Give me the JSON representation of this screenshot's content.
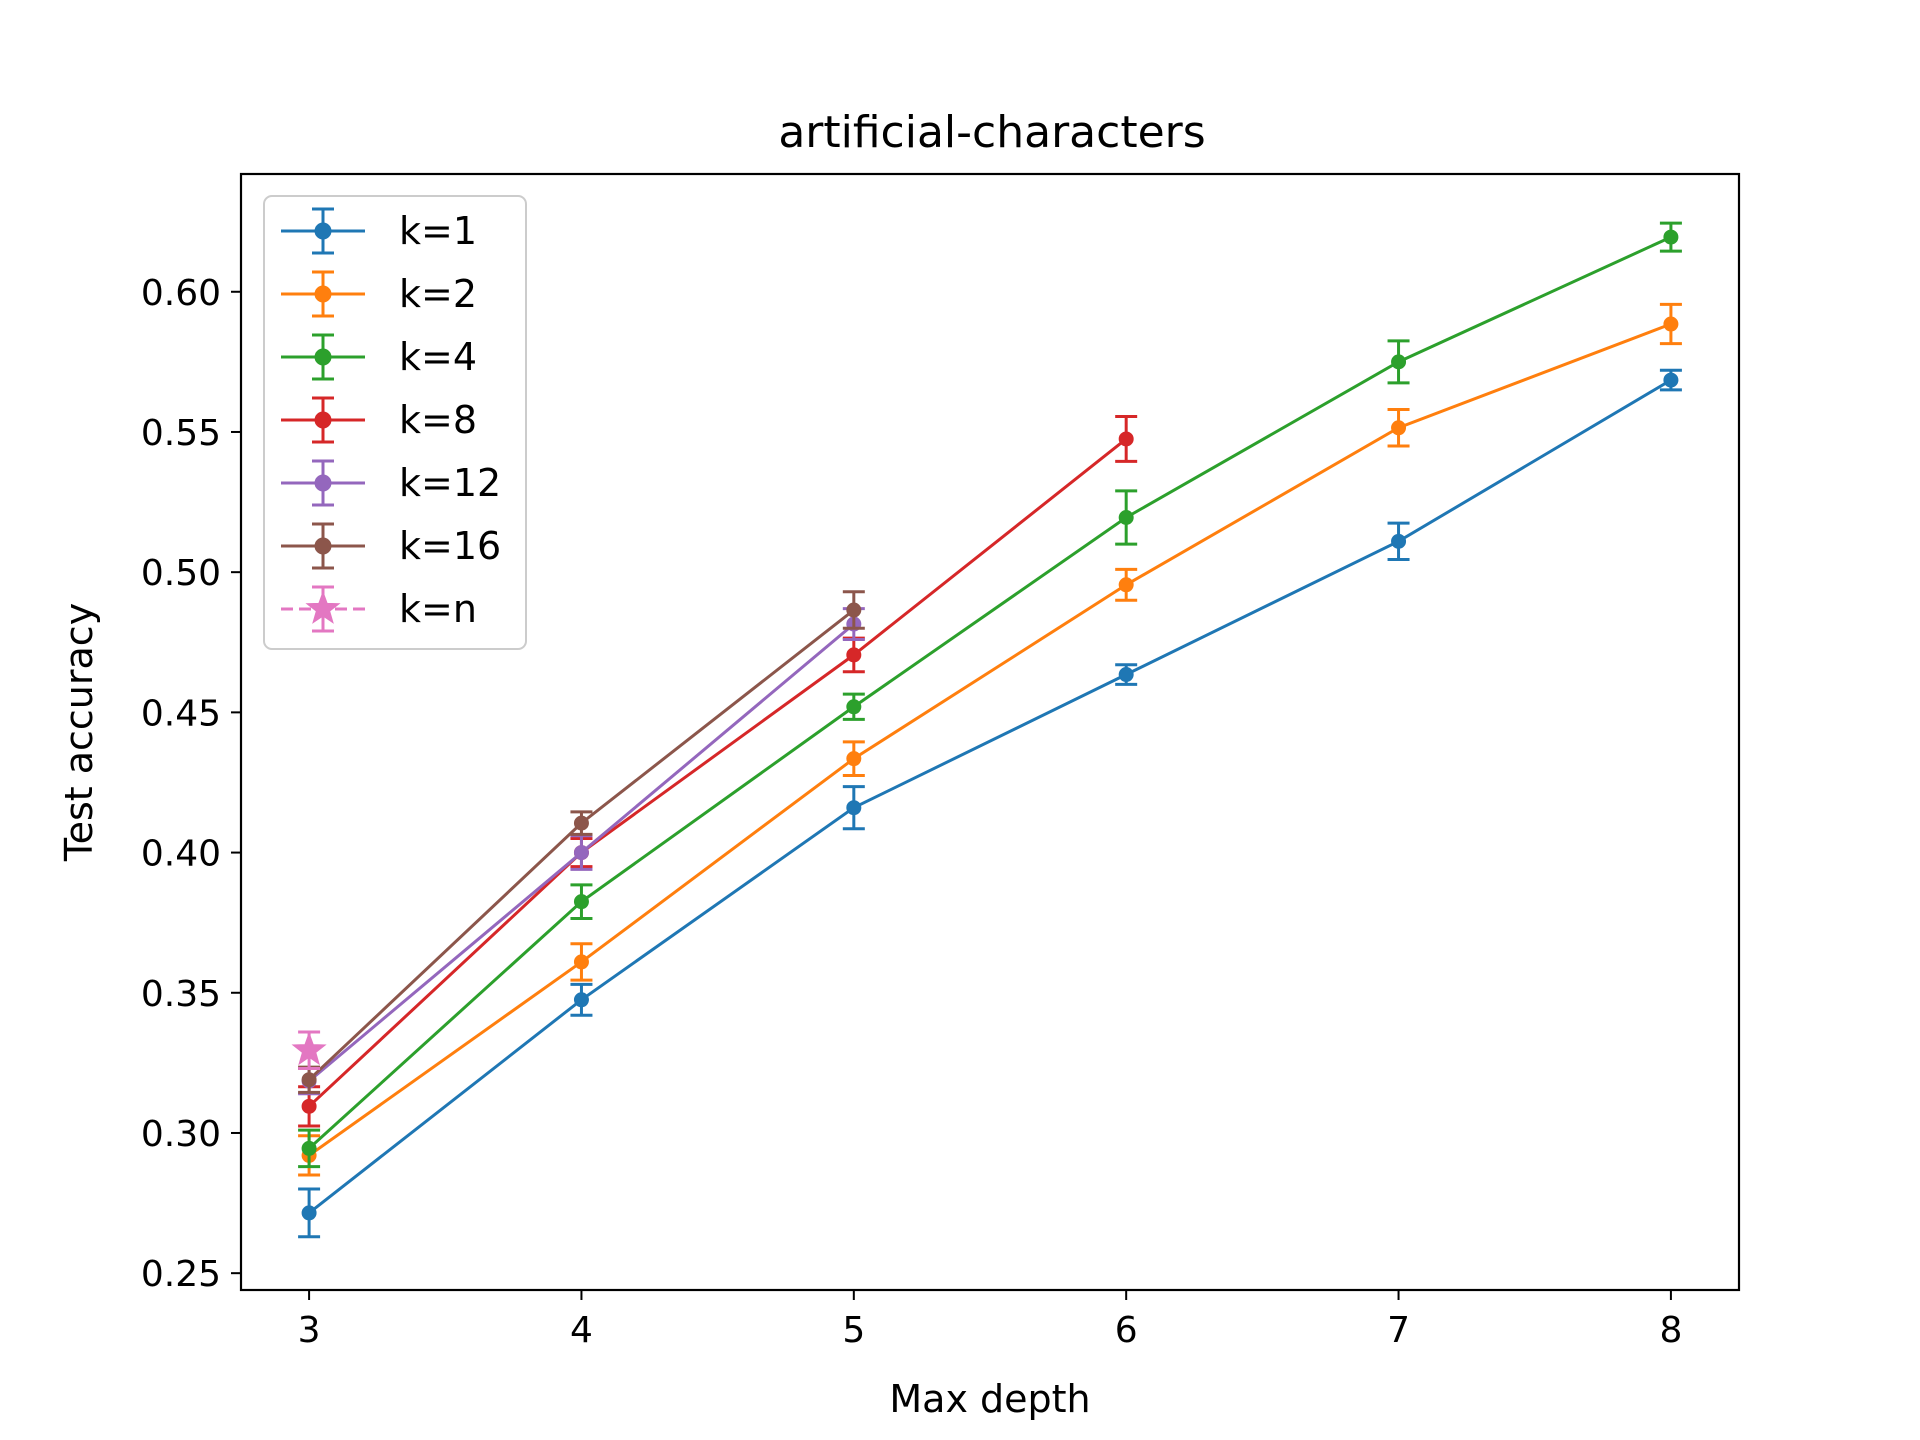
{
  "chart_data": {
    "type": "line",
    "title": "artificial-characters",
    "xlabel": "Max depth",
    "ylabel": "Test accuracy",
    "xlim": [
      2.75,
      8.25
    ],
    "ylim": [
      0.244,
      0.642
    ],
    "xticks": [
      3,
      4,
      5,
      6,
      7,
      8
    ],
    "yticks": [
      0.25,
      0.3,
      0.35,
      0.4,
      0.45,
      0.5,
      0.55,
      0.6
    ],
    "ytick_labels": [
      "0.25",
      "0.30",
      "0.35",
      "0.40",
      "0.45",
      "0.50",
      "0.55",
      "0.60"
    ],
    "grid": false,
    "legend_location": "upper left",
    "series": [
      {
        "name": "k=1",
        "color": "#1f77b4",
        "marker": "circle",
        "linestyle": "solid",
        "x": [
          3,
          4,
          5,
          6,
          7,
          8
        ],
        "y": [
          0.2715,
          0.3475,
          0.416,
          0.4635,
          0.511,
          0.5685
        ],
        "err": [
          0.0085,
          0.0055,
          0.0075,
          0.0035,
          0.0065,
          0.0035
        ]
      },
      {
        "name": "k=2",
        "color": "#ff7f0e",
        "marker": "circle",
        "linestyle": "solid",
        "x": [
          3,
          4,
          5,
          6,
          7,
          8
        ],
        "y": [
          0.292,
          0.361,
          0.4335,
          0.4955,
          0.5515,
          0.5885
        ],
        "err": [
          0.007,
          0.0065,
          0.006,
          0.0055,
          0.0065,
          0.007
        ]
      },
      {
        "name": "k=4",
        "color": "#2ca02c",
        "marker": "circle",
        "linestyle": "solid",
        "x": [
          3,
          4,
          5,
          6,
          7,
          8
        ],
        "y": [
          0.2945,
          0.3825,
          0.452,
          0.5195,
          0.575,
          0.6195
        ],
        "err": [
          0.0065,
          0.006,
          0.0045,
          0.0095,
          0.0075,
          0.005
        ]
      },
      {
        "name": "k=8",
        "color": "#d62728",
        "marker": "circle",
        "linestyle": "solid",
        "x": [
          3,
          4,
          5,
          6
        ],
        "y": [
          0.3095,
          0.4,
          0.4705,
          0.5475
        ],
        "err": [
          0.007,
          0.005,
          0.006,
          0.008
        ]
      },
      {
        "name": "k=12",
        "color": "#9467bd",
        "marker": "circle",
        "linestyle": "solid",
        "x": [
          3,
          4,
          5
        ],
        "y": [
          0.3185,
          0.4,
          0.4815
        ],
        "err": [
          0.0045,
          0.006,
          0.0055
        ]
      },
      {
        "name": "k=16",
        "color": "#8c564b",
        "marker": "circle",
        "linestyle": "solid",
        "x": [
          3,
          4,
          5
        ],
        "y": [
          0.319,
          0.4105,
          0.4865
        ],
        "err": [
          0.0045,
          0.004,
          0.0065
        ]
      },
      {
        "name": "k=n",
        "color": "#e377c2",
        "marker": "star",
        "linestyle": "dashed",
        "x": [
          3
        ],
        "y": [
          0.3295
        ],
        "err": [
          0.0065
        ]
      }
    ]
  }
}
